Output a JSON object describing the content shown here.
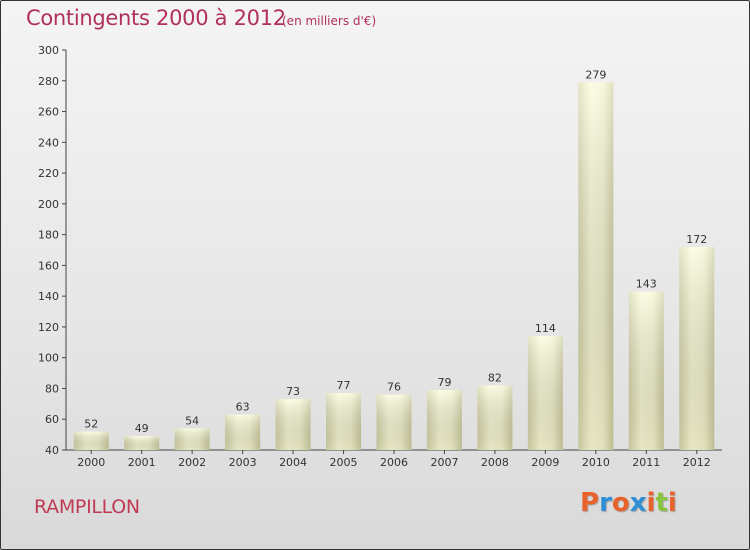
{
  "header": {
    "title": "Contingents 2000 à 2012",
    "unit": "(en milliers d'€)"
  },
  "footer": {
    "commune": "RAMPILLON",
    "logo_letters": [
      "P",
      "r",
      "o",
      "x",
      "i",
      "t",
      "i"
    ],
    "logo_colors": [
      "#e8632b",
      "#2f8fd6",
      "#e8632b",
      "#2f8fd6",
      "#e8632b",
      "#8ac43f",
      "#e8632b"
    ]
  },
  "chart_data": {
    "type": "bar",
    "categories": [
      "2000",
      "2001",
      "2002",
      "2003",
      "2004",
      "2005",
      "2006",
      "2007",
      "2008",
      "2009",
      "2010",
      "2011",
      "2012"
    ],
    "values": [
      52,
      49,
      54,
      63,
      73,
      77,
      76,
      79,
      82,
      114,
      279,
      143,
      172
    ],
    "ylim": [
      40,
      300
    ],
    "yticks": [
      40,
      60,
      80,
      100,
      120,
      140,
      160,
      180,
      200,
      220,
      240,
      260,
      280,
      300
    ],
    "grid": false,
    "colors": {
      "bar_light": "#ffffd8",
      "bar_dark": "#d6d6a8",
      "text": "#333333",
      "accent": "#b0305a"
    }
  }
}
